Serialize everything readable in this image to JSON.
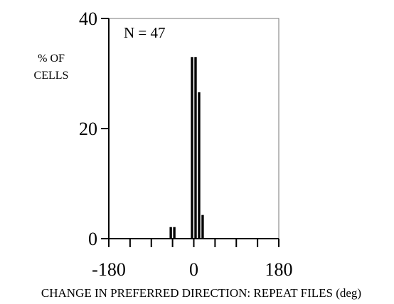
{
  "chart_data": {
    "type": "bar",
    "annotation": "N = 47",
    "ylabel_lines": [
      "% OF",
      "CELLS"
    ],
    "xlabel": "CHANGE IN PREFERRED DIRECTION: REPEAT FILES (deg)",
    "xlim": [
      -180,
      180
    ],
    "ylim": [
      0,
      40
    ],
    "xticks": [
      -180,
      -135,
      -90,
      -45,
      0,
      45,
      90,
      135,
      180
    ],
    "xtick_labels": [
      "-180",
      "0",
      "180"
    ],
    "yticks": [
      0,
      20,
      40
    ],
    "ytick_labels": [
      "0",
      "20",
      "40"
    ],
    "bin_width": 7.5,
    "bins": [
      {
        "x": -52.5,
        "value": 2.1
      },
      {
        "x": -45,
        "value": 2.1
      },
      {
        "x": -7.5,
        "value": 33
      },
      {
        "x": 0,
        "value": 33
      },
      {
        "x": 7.5,
        "value": 26.6
      },
      {
        "x": 15,
        "value": 4.3
      }
    ],
    "grid": false,
    "bar_color": "#000000"
  }
}
